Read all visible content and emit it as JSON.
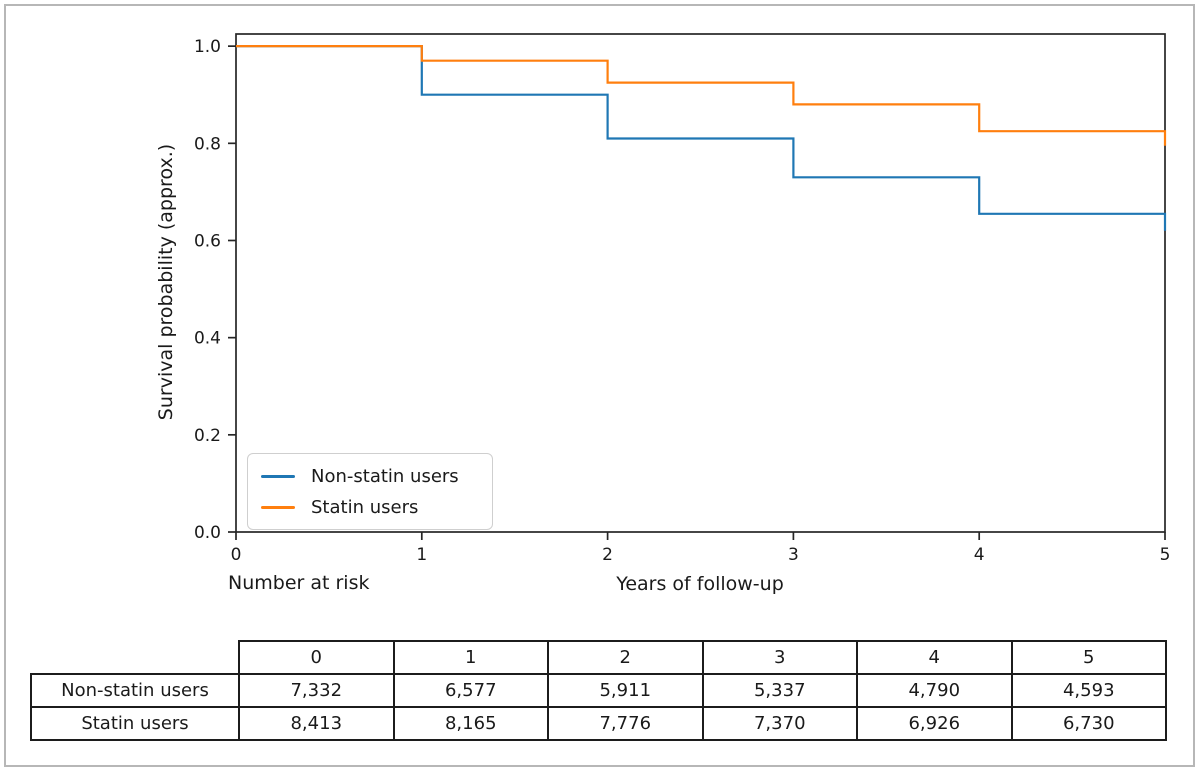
{
  "chart_data": {
    "type": "line",
    "subtype": "kaplan-meier-step",
    "title": "",
    "xlabel": "Years of follow-up",
    "ylabel": "Survival probability (approx.)",
    "xlim": [
      0,
      5
    ],
    "ylim": [
      0,
      1.025
    ],
    "xticks": [
      "0",
      "1",
      "2",
      "3",
      "4",
      "5"
    ],
    "yticks": [
      "0.0",
      "0.2",
      "0.4",
      "0.6",
      "0.8",
      "1.0"
    ],
    "grid": false,
    "frame": "full-box",
    "legend_position": "lower left",
    "axis_color": "#262626",
    "series": [
      {
        "name": "Non-statin users",
        "color": "#1f77b4",
        "points": [
          [
            0,
            1.0
          ],
          [
            1,
            1.0
          ],
          [
            1,
            0.9
          ],
          [
            2,
            0.9
          ],
          [
            2,
            0.81
          ],
          [
            3,
            0.81
          ],
          [
            3,
            0.73
          ],
          [
            4,
            0.73
          ],
          [
            4,
            0.655
          ],
          [
            5,
            0.655
          ],
          [
            5,
            0.62
          ]
        ]
      },
      {
        "name": "Statin users",
        "color": "#ff7f0e",
        "points": [
          [
            0,
            1.0
          ],
          [
            1,
            1.0
          ],
          [
            1,
            0.97
          ],
          [
            2,
            0.97
          ],
          [
            2,
            0.925
          ],
          [
            3,
            0.925
          ],
          [
            3,
            0.88
          ],
          [
            4,
            0.88
          ],
          [
            4,
            0.825
          ],
          [
            5,
            0.825
          ],
          [
            5,
            0.795
          ]
        ]
      }
    ]
  },
  "figure": {
    "number_at_risk_label": "Number at risk"
  },
  "risk_table": {
    "columns": [
      "0",
      "1",
      "2",
      "3",
      "4",
      "5"
    ],
    "rows": [
      {
        "label": "Non-statin users",
        "values": [
          "7,332",
          "6,577",
          "5,911",
          "5,337",
          "4,790",
          "4,593"
        ]
      },
      {
        "label": "Statin users",
        "values": [
          "8,413",
          "8,165",
          "7,776",
          "7,370",
          "6,926",
          "6,730"
        ]
      }
    ]
  }
}
